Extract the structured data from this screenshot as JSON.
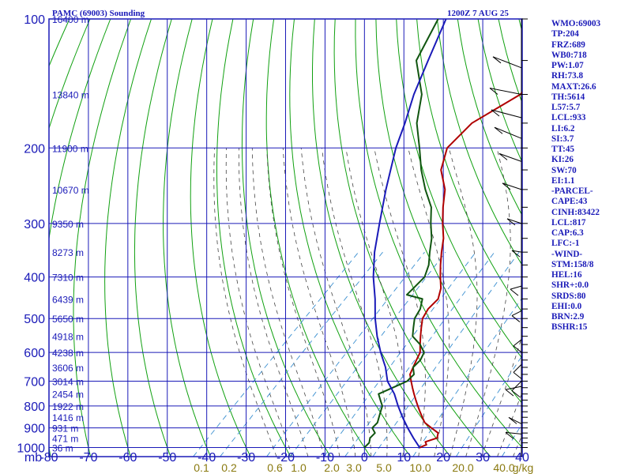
{
  "header": {
    "station_title": "PAMC (69003) Sounding",
    "time_title": "1200Z  7 AUG 25"
  },
  "chart_data": {
    "type": "line",
    "title": "PAMC (69003) Sounding",
    "subtitle": "1200Z  7 AUG 25",
    "x_axis": {
      "unit_label": "mb",
      "range": [
        -80,
        40
      ],
      "ticks": [
        -80,
        -70,
        -60,
        -50,
        -40,
        -30,
        -20,
        -10,
        0,
        10,
        20,
        30,
        40
      ]
    },
    "y_axis": {
      "scale": "log",
      "range": [
        1000,
        100
      ],
      "ticks": [
        100,
        200,
        300,
        400,
        500,
        600,
        700,
        800,
        900,
        1000
      ]
    },
    "height_labels": [
      {
        "p": 100,
        "label": "16400 m"
      },
      {
        "p": 150,
        "label": "13840 m"
      },
      {
        "p": 200,
        "label": "11900 m"
      },
      {
        "p": 250,
        "label": "10670 m"
      },
      {
        "p": 300,
        "label": "9350 m"
      },
      {
        "p": 350,
        "label": "8273 m"
      },
      {
        "p": 400,
        "label": "7310 m"
      },
      {
        "p": 450,
        "label": "6439 m"
      },
      {
        "p": 500,
        "label": "5650 m"
      },
      {
        "p": 550,
        "label": "4918 m"
      },
      {
        "p": 600,
        "label": "4238 m"
      },
      {
        "p": 650,
        "label": "3606 m"
      },
      {
        "p": 700,
        "label": "3014 m"
      },
      {
        "p": 750,
        "label": "2454 m"
      },
      {
        "p": 800,
        "label": "1922 m"
      },
      {
        "p": 850,
        "label": "1416 m"
      },
      {
        "p": 900,
        "label": "931 m"
      },
      {
        "p": 950,
        "label": "471 m"
      },
      {
        "p": 1000,
        "label": "36 m"
      }
    ],
    "mixing_ratio_labels": [
      "0.1",
      "0.2",
      "0.6",
      "1.0",
      "2.0",
      "3.0",
      "5.0",
      "10.0",
      "20.0",
      "40.0",
      "g/kg"
    ],
    "series": [
      {
        "key": "temperature",
        "color": "#b00000",
        "points": [
          [
            1000,
            14
          ],
          [
            985,
            15
          ],
          [
            970,
            14
          ],
          [
            950,
            16
          ],
          [
            925,
            15
          ],
          [
            900,
            12
          ],
          [
            875,
            9
          ],
          [
            850,
            7
          ],
          [
            825,
            5
          ],
          [
            800,
            3
          ],
          [
            775,
            1
          ],
          [
            750,
            -1
          ],
          [
            725,
            -3
          ],
          [
            700,
            -5
          ],
          [
            675,
            -7
          ],
          [
            650,
            -8
          ],
          [
            625,
            -9
          ],
          [
            600,
            -10
          ],
          [
            575,
            -12
          ],
          [
            550,
            -14
          ],
          [
            525,
            -16
          ],
          [
            500,
            -18
          ],
          [
            475,
            -19
          ],
          [
            450,
            -19
          ],
          [
            425,
            -21
          ],
          [
            400,
            -24
          ],
          [
            375,
            -27
          ],
          [
            350,
            -30
          ],
          [
            325,
            -33
          ],
          [
            300,
            -37
          ],
          [
            275,
            -41
          ],
          [
            250,
            -45
          ],
          [
            225,
            -51
          ],
          [
            200,
            -55
          ],
          [
            175,
            -55
          ],
          [
            150,
            -50
          ],
          [
            125,
            -50
          ],
          [
            100,
            -50
          ]
        ]
      },
      {
        "key": "dewpoint",
        "color": "#105510",
        "points": [
          [
            1000,
            0
          ],
          [
            975,
            0
          ],
          [
            950,
            -1
          ],
          [
            925,
            -1
          ],
          [
            900,
            -3
          ],
          [
            875,
            -3
          ],
          [
            850,
            -4
          ],
          [
            825,
            -5
          ],
          [
            800,
            -6
          ],
          [
            775,
            -8
          ],
          [
            750,
            -10
          ],
          [
            725,
            -8
          ],
          [
            700,
            -6
          ],
          [
            675,
            -6
          ],
          [
            650,
            -8
          ],
          [
            625,
            -8
          ],
          [
            600,
            -9
          ],
          [
            575,
            -12
          ],
          [
            550,
            -16
          ],
          [
            525,
            -18
          ],
          [
            500,
            -20
          ],
          [
            475,
            -21
          ],
          [
            450,
            -23
          ],
          [
            440,
            -28
          ],
          [
            425,
            -28
          ],
          [
            400,
            -28
          ],
          [
            375,
            -30
          ],
          [
            350,
            -33
          ],
          [
            325,
            -36
          ],
          [
            300,
            -40
          ],
          [
            275,
            -44
          ],
          [
            250,
            -50
          ],
          [
            225,
            -56
          ],
          [
            200,
            -62
          ],
          [
            175,
            -69
          ],
          [
            150,
            -75
          ],
          [
            125,
            -85
          ],
          [
            100,
            -90
          ]
        ]
      },
      {
        "key": "parcel",
        "color": "#1a1ab8",
        "points": [
          [
            1000,
            14
          ],
          [
            950,
            10
          ],
          [
            900,
            6
          ],
          [
            850,
            2
          ],
          [
            800,
            -2
          ],
          [
            750,
            -6
          ],
          [
            700,
            -11
          ],
          [
            650,
            -15
          ],
          [
            600,
            -20
          ],
          [
            550,
            -25
          ],
          [
            500,
            -30
          ],
          [
            450,
            -35
          ],
          [
            400,
            -41
          ],
          [
            350,
            -47
          ],
          [
            300,
            -53
          ],
          [
            250,
            -60
          ],
          [
            200,
            -68
          ],
          [
            175,
            -72
          ],
          [
            150,
            -77
          ],
          [
            125,
            -82
          ],
          [
            100,
            -88
          ]
        ]
      }
    ]
  },
  "indices": [
    "WMO:69003",
    "TP:204",
    "FRZ:689",
    "WB0:718",
    "PW:1.07",
    "RH:73.8",
    "MAXT:26.6",
    "TH:5614",
    "L57:5.7",
    "LCL:933",
    "LI:6.2",
    "SI:3.7",
    "TT:45",
    "KI:26",
    "SW:70",
    "EI:1.1",
    "-PARCEL-",
    "CAPE:43",
    "CINH:83422",
    "LCL:817",
    "CAP:6.3",
    "LFC:-1",
    "-WIND-",
    "STM:158/8",
    "HEL:16",
    "SHR+:0.0",
    "SRDS:80",
    "EHI:0.0",
    "BRN:2.9",
    "BSHR:15"
  ],
  "colors": {
    "grid": "#1a1ab8",
    "dry_adiabat": "#10a010",
    "moist_adiabat": "#444444",
    "mixing_ratio": "#3a8fd0",
    "temperature": "#b00000",
    "dewpoint": "#105510",
    "parcel": "#1a1ab8",
    "wind": "#000000"
  }
}
